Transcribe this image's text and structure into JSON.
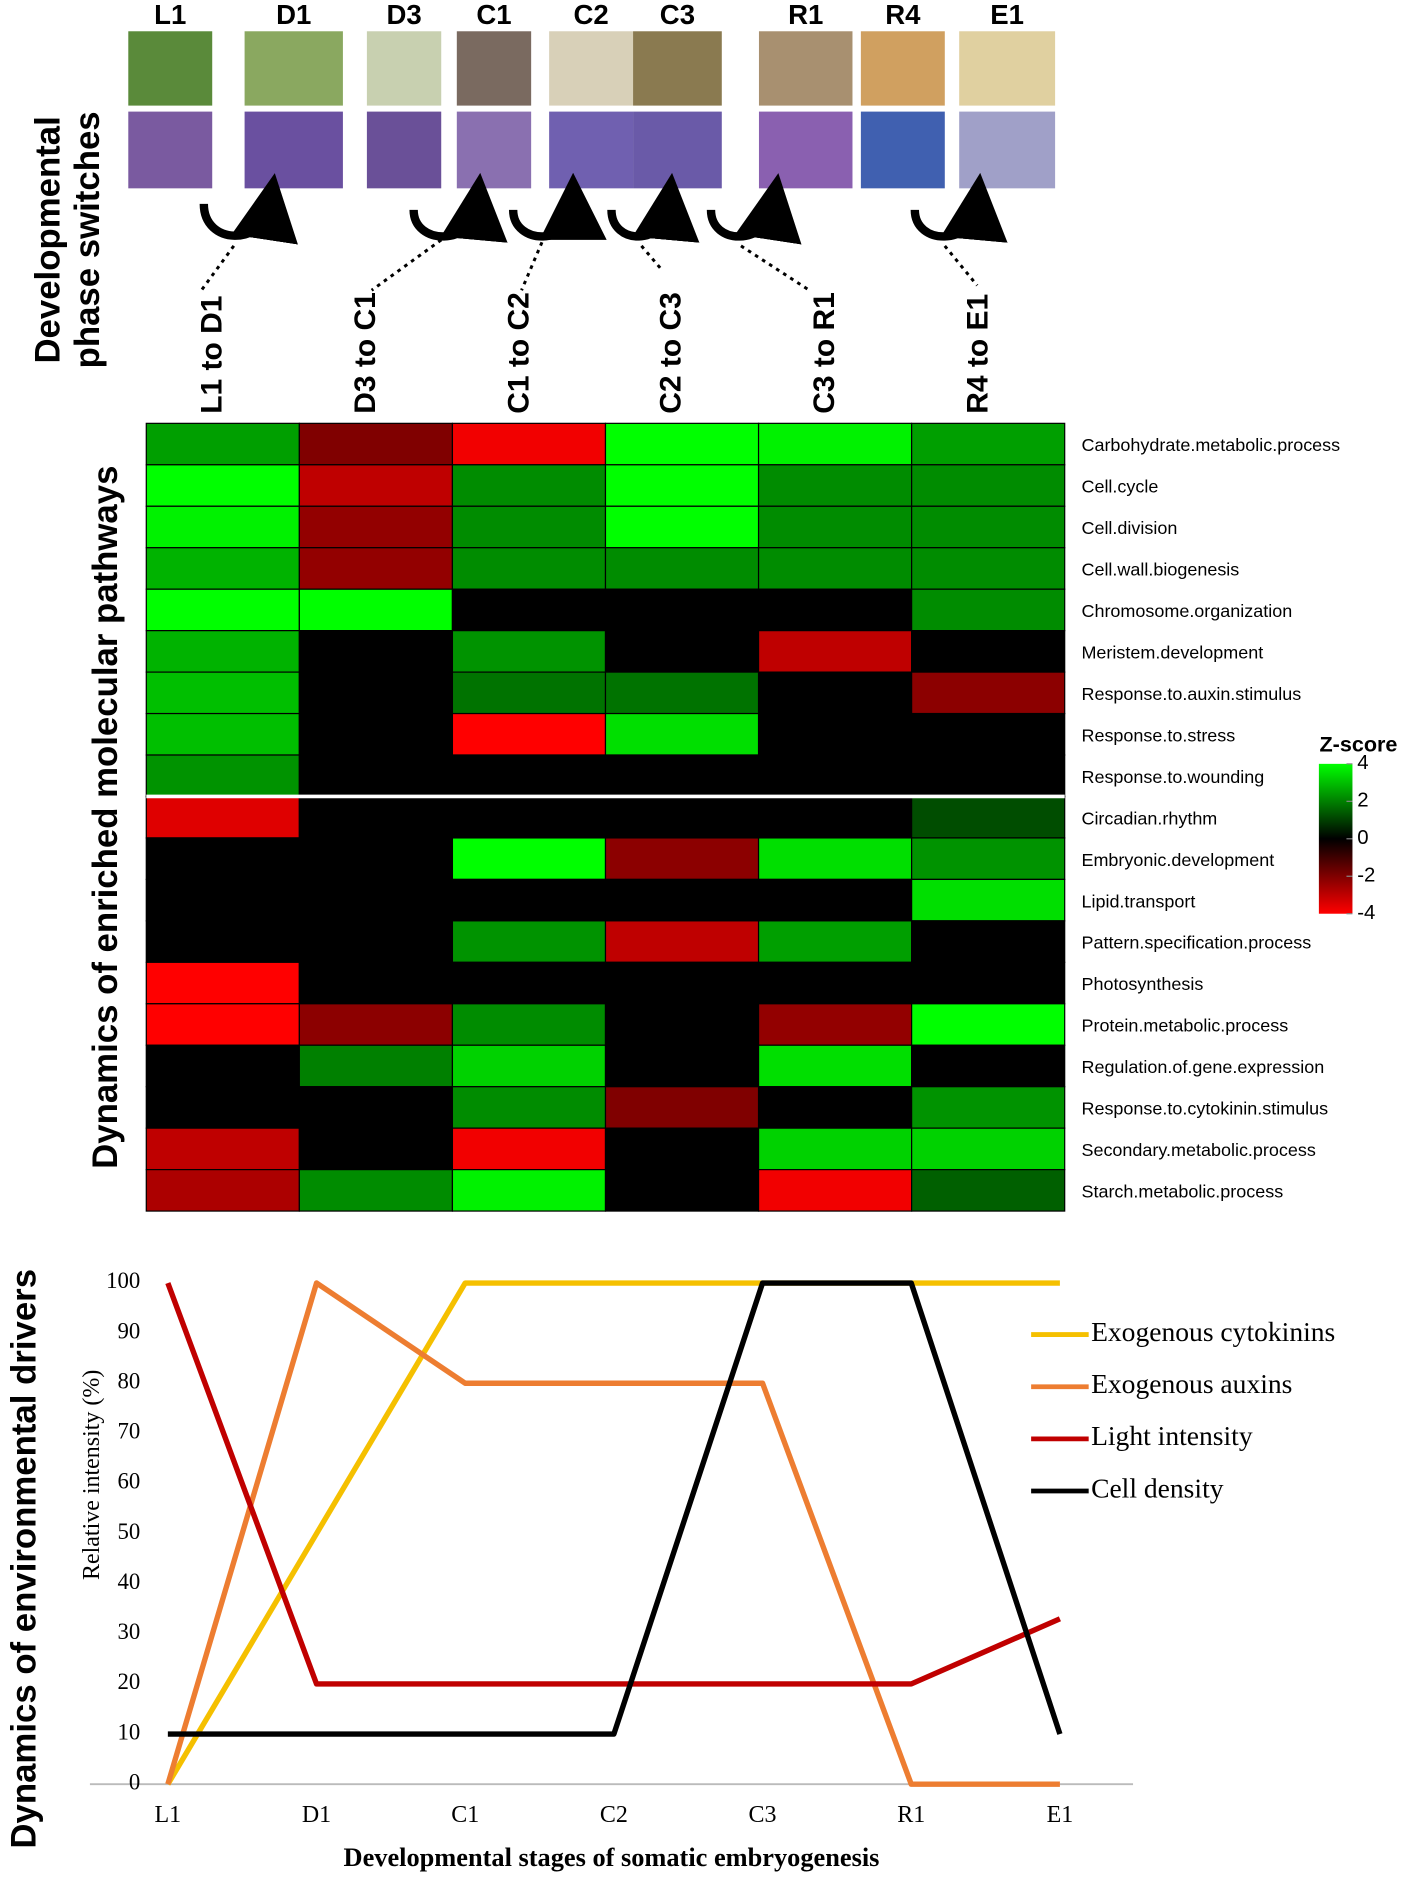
{
  "phase_panel": {
    "label": [
      "Developmental",
      "phase switches"
    ],
    "stages": [
      "L1",
      "D1",
      "D3",
      "C1",
      "C2",
      "C3",
      "R1",
      "R4",
      "E1"
    ],
    "transitions": [
      "L1 to D1",
      "D3 to C1",
      "C1 to C2",
      "C2 to C3",
      "C3 to R1",
      "R4 to E1"
    ]
  },
  "chart_data": [
    {
      "type": "heatmap",
      "side_label": "Dynamics of enriched molecular pathways",
      "columns_from": "phase_panel.transitions",
      "rows": [
        "Carbohydrate.metabolic.process",
        "Cell.cycle",
        "Cell.division",
        "Cell.wall.biogenesis",
        "Chromosome.organization",
        "Meristem.development",
        "Response.to.auxin.stimulus",
        "Response.to.stress",
        "Response.to.wounding",
        "Circadian.rhythm",
        "Embryonic.development",
        "Lipid.transport",
        "Pattern.specification.process",
        "Photosynthesis",
        "Protein.metabolic.process",
        "Regulation.of.gene.expression",
        "Response.to.cytokinin.stimulus",
        "Secondary.metabolic.process",
        "Starch.metabolic.process"
      ],
      "values": [
        [
          2.5,
          -2,
          -3.8,
          4,
          3.8,
          2.5
        ],
        [
          4,
          -3,
          2.2,
          4,
          2.2,
          2.2
        ],
        [
          3.8,
          -2.3,
          2.2,
          4,
          2.2,
          2.2
        ],
        [
          2.8,
          -2.3,
          2.2,
          2.2,
          2.2,
          2.2
        ],
        [
          4,
          4,
          0,
          0,
          0,
          2.2
        ],
        [
          2.8,
          0,
          2.3,
          0,
          -3,
          0
        ],
        [
          3,
          0,
          1.8,
          1.8,
          0,
          -2.2
        ],
        [
          3,
          0,
          -4,
          3.5,
          0,
          0
        ],
        [
          2.3,
          0,
          0,
          0,
          0,
          0
        ],
        [
          -3.5,
          0,
          0,
          0,
          0,
          1.2
        ],
        [
          0,
          0,
          4,
          -2.2,
          3.5,
          2.3
        ],
        [
          0,
          0,
          0,
          0,
          0,
          3.5
        ],
        [
          0,
          0,
          2.3,
          -3,
          2.5,
          0
        ],
        [
          -4,
          0,
          0,
          0,
          0,
          0
        ],
        [
          -4,
          -2.2,
          2.2,
          0,
          -2.3,
          4
        ],
        [
          0,
          2,
          3.3,
          0,
          3.5,
          0
        ],
        [
          0,
          0,
          2.2,
          -2,
          0,
          2.3
        ],
        [
          -3,
          0,
          -3.8,
          0,
          3.3,
          3.3
        ],
        [
          -2.7,
          2.2,
          3.8,
          0,
          -3.8,
          1.5
        ]
      ],
      "colorbar_title": "Z-score",
      "zlim": [
        -4,
        4
      ],
      "zticks": [
        4,
        2,
        0,
        -2,
        -4
      ],
      "colormap": [
        "#ff0000",
        "#000000",
        "#00ff00"
      ]
    },
    {
      "type": "line",
      "side_label": "Dynamics of environmental drivers",
      "x_label": "Developmental stages of somatic embryogenesis",
      "y_label": "Relative intensity (%)",
      "categories": [
        "L1",
        "D1",
        "C1",
        "C2",
        "C3",
        "R1",
        "E1"
      ],
      "ylim": [
        0,
        100
      ],
      "yticks": [
        0,
        10,
        20,
        30,
        40,
        50,
        60,
        70,
        80,
        90,
        100
      ],
      "legend": "right",
      "series": [
        {
          "name": "Exogenous cytokinins",
          "color": "#f5c000",
          "values": [
            0,
            50,
            100,
            100,
            100,
            100,
            100
          ]
        },
        {
          "name": "Exogenous auxins",
          "color": "#ed7d31",
          "values": [
            0,
            100,
            80,
            80,
            80,
            0,
            0
          ]
        },
        {
          "name": "Light intensity",
          "color": "#c00000",
          "values": [
            100,
            20,
            20,
            20,
            20,
            20,
            33
          ]
        },
        {
          "name": "Cell density",
          "color": "#000000",
          "values": [
            10,
            10,
            10,
            10,
            100,
            100,
            10
          ]
        }
      ]
    }
  ]
}
